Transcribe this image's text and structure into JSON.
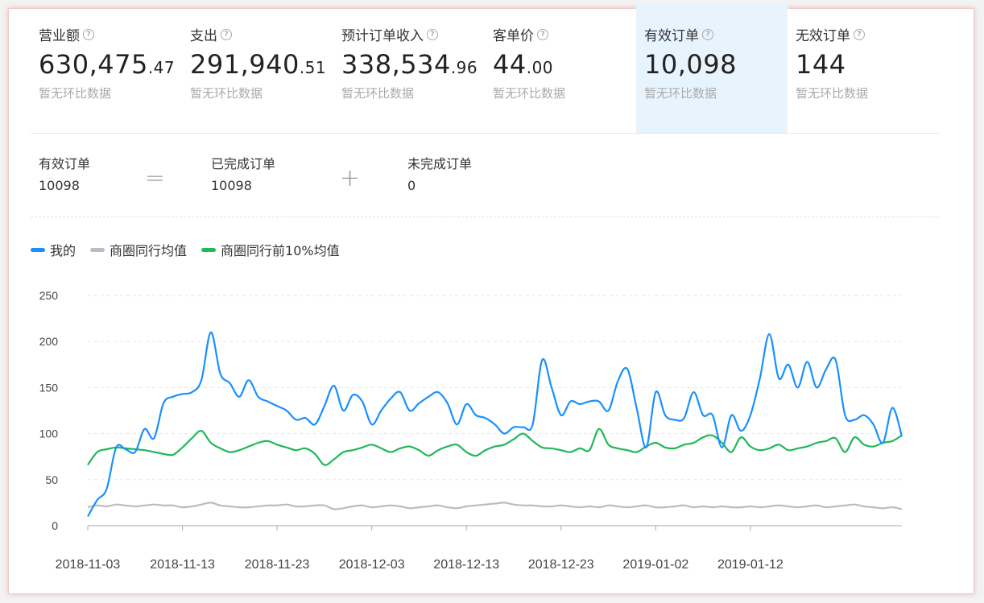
{
  "kpis": [
    {
      "label": "营业额",
      "int": "630,475",
      "dec": ".47",
      "sub": "暂无环比数据",
      "active": false
    },
    {
      "label": "支出",
      "int": "291,940",
      "dec": ".51",
      "sub": "暂无环比数据",
      "active": false
    },
    {
      "label": "预计订单收入",
      "int": "338,534",
      "dec": ".96",
      "sub": "暂无环比数据",
      "active": false
    },
    {
      "label": "客单价",
      "int": "44",
      "dec": ".00",
      "sub": "暂无环比数据",
      "active": false
    },
    {
      "label": "有效订单",
      "int": "10,098",
      "dec": "",
      "sub": "暂无环比数据",
      "active": true
    },
    {
      "label": "无效订单",
      "int": "144",
      "dec": "",
      "sub": "暂无环比数据",
      "active": false
    }
  ],
  "formula": {
    "left_label": "有效订单",
    "left_value": "10098",
    "op1": "=",
    "mid_label": "已完成订单",
    "mid_value": "10098",
    "op2": "+",
    "right_label": "未完成订单",
    "right_value": "0"
  },
  "chart_data": {
    "type": "line",
    "ylim": [
      0,
      250
    ],
    "yticks": [
      "250",
      "200",
      "150",
      "100",
      "50",
      "0"
    ],
    "xtick_labels": [
      "2018-11-03",
      "2018-11-13",
      "2018-11-23",
      "2018-12-03",
      "2018-12-13",
      "2018-12-23",
      "2019-01-02",
      "2019-01-12"
    ],
    "series": [
      {
        "name": "我的",
        "color": "#1890ff",
        "values": [
          10,
          28,
          40,
          85,
          83,
          80,
          105,
          95,
          133,
          140,
          143,
          145,
          158,
          210,
          165,
          155,
          140,
          158,
          140,
          135,
          130,
          125,
          115,
          117,
          110,
          130,
          152,
          125,
          142,
          135,
          110,
          125,
          138,
          145,
          125,
          133,
          140,
          145,
          133,
          110,
          132,
          120,
          117,
          110,
          100,
          107,
          107,
          110,
          180,
          150,
          120,
          135,
          132,
          135,
          135,
          125,
          157,
          170,
          127,
          85,
          145,
          120,
          115,
          117,
          145,
          120,
          120,
          85,
          120,
          103,
          120,
          160,
          208,
          160,
          175,
          150,
          178,
          150,
          170,
          180,
          120,
          115,
          120,
          110,
          90,
          128,
          97
        ]
      },
      {
        "name": "商圈同行均值",
        "color": "#b8bcc8",
        "values": [
          20,
          22,
          21,
          23,
          22,
          21,
          22,
          23,
          22,
          22,
          20,
          21,
          23,
          25,
          22,
          21,
          20,
          20,
          21,
          22,
          22,
          23,
          21,
          21,
          22,
          22,
          18,
          19,
          21,
          22,
          20,
          21,
          22,
          21,
          19,
          20,
          21,
          22,
          20,
          19,
          21,
          22,
          23,
          24,
          25,
          23,
          22,
          22,
          21,
          21,
          22,
          21,
          20,
          21,
          20,
          22,
          21,
          20,
          21,
          22,
          20,
          20,
          21,
          22,
          20,
          21,
          20,
          21,
          20,
          20,
          21,
          20,
          21,
          22,
          21,
          20,
          21,
          22,
          20,
          21,
          22,
          23,
          21,
          20,
          19,
          20,
          18
        ]
      },
      {
        "name": "商圈同行前10%均值",
        "color": "#1fb85a",
        "values": [
          66,
          80,
          83,
          85,
          84,
          83,
          82,
          80,
          78,
          77,
          85,
          95,
          103,
          90,
          84,
          80,
          82,
          86,
          90,
          92,
          88,
          85,
          82,
          84,
          78,
          66,
          72,
          80,
          82,
          85,
          88,
          84,
          80,
          84,
          86,
          82,
          76,
          82,
          86,
          88,
          80,
          76,
          82,
          86,
          88,
          94,
          100,
          92,
          85,
          84,
          82,
          80,
          84,
          82,
          105,
          88,
          84,
          82,
          80,
          86,
          90,
          85,
          84,
          88,
          90,
          96,
          98,
          90,
          80,
          96,
          86,
          82,
          84,
          88,
          82,
          84,
          86,
          90,
          92,
          95,
          80,
          96,
          88,
          86,
          90,
          92,
          98
        ]
      }
    ]
  }
}
